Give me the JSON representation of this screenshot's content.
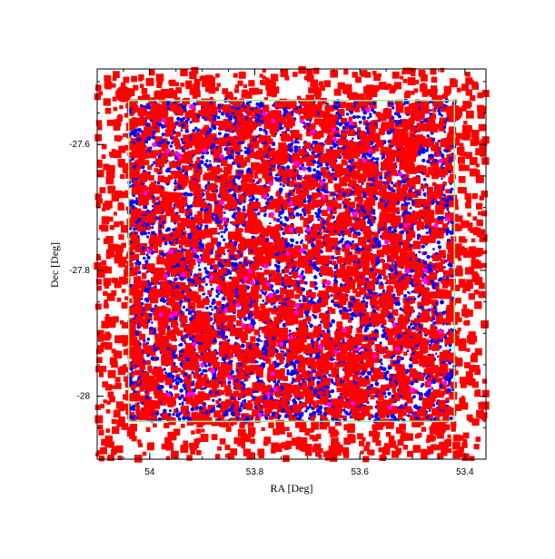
{
  "chart_data": {
    "type": "scatter",
    "title": "",
    "xlabel": "RA [Deg]",
    "ylabel": "Dec [Deg]",
    "xlim": [
      54.1,
      53.36
    ],
    "ylim": [
      -28.1,
      -27.48
    ],
    "x_reversed": true,
    "xticks": [
      {
        "value": 54.0,
        "label": "54"
      },
      {
        "value": 53.8,
        "label": "53.8"
      },
      {
        "value": 53.6,
        "label": "53.6"
      },
      {
        "value": 53.4,
        "label": "53.4"
      }
    ],
    "yticks": [
      {
        "value": -27.6,
        "label": "-27.6"
      },
      {
        "value": -27.8,
        "label": "-27.8"
      },
      {
        "value": -28.0,
        "label": "-28"
      }
    ],
    "grid": false,
    "legend": "none",
    "series": [
      {
        "color": "#ff0000",
        "marker": "square",
        "description_region": "filled field RA 53.36-54.10, Dec -28.10 to -27.48",
        "points": [
          [
            54.05,
            -27.52
          ],
          [
            53.98,
            -27.55
          ],
          [
            53.9,
            -27.6
          ],
          [
            53.82,
            -27.58
          ],
          [
            53.75,
            -27.62
          ],
          [
            53.66,
            -27.57
          ],
          [
            53.58,
            -27.64
          ],
          [
            53.5,
            -27.6
          ],
          [
            53.42,
            -27.55
          ],
          [
            53.8,
            -27.73
          ],
          [
            53.63,
            -27.72
          ],
          [
            53.55,
            -27.85
          ],
          [
            53.72,
            -27.92
          ],
          [
            53.9,
            -27.88
          ],
          [
            54.0,
            -27.98
          ],
          [
            53.6,
            -28.0
          ],
          [
            53.45,
            -28.05
          ]
        ]
      },
      {
        "color": "#0000ff",
        "marker": "dot",
        "description_region": "field RA 53.42-54.04, Dec -28.04 to -27.53",
        "points": [
          [
            54.0,
            -27.6
          ],
          [
            53.9,
            -27.7
          ],
          [
            53.8,
            -27.8
          ],
          [
            53.7,
            -27.9
          ],
          [
            53.6,
            -27.95
          ],
          [
            53.5,
            -27.75
          ],
          [
            53.45,
            -27.65
          ],
          [
            53.85,
            -27.97
          ]
        ]
      },
      {
        "color": "#ff00ff",
        "marker": "dot",
        "points": [
          [
            53.92,
            -27.54
          ],
          [
            53.72,
            -27.63
          ],
          [
            53.61,
            -27.71
          ],
          [
            53.77,
            -27.84
          ],
          [
            53.88,
            -27.96
          ],
          [
            53.5,
            -27.99
          ],
          [
            53.66,
            -27.82
          ],
          [
            53.96,
            -27.77
          ]
        ]
      },
      {
        "color": "#90ee90",
        "marker": "line",
        "points": [
          [
            54.04,
            -27.53
          ],
          [
            53.42,
            -27.53
          ],
          [
            53.42,
            -28.04
          ],
          [
            54.04,
            -28.04
          ],
          [
            54.04,
            -27.53
          ]
        ]
      }
    ]
  }
}
